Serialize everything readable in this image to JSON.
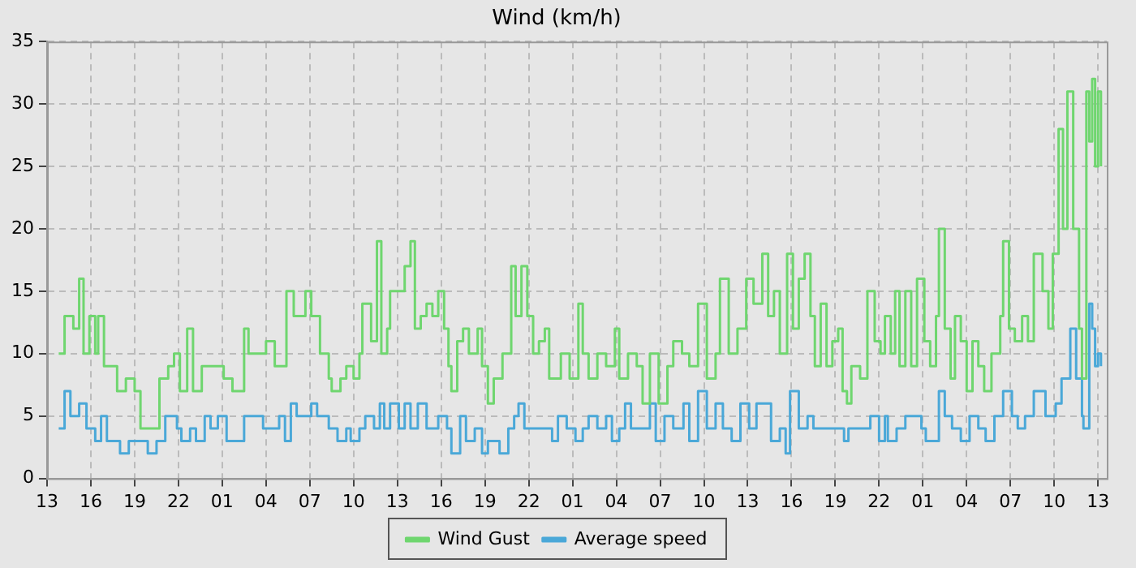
{
  "chart_data": {
    "type": "step",
    "title": "Wind (km/h)",
    "xlim": [
      "--01-01T13:00",
      "--01-04T13:36"
    ],
    "ylim": [
      0,
      35
    ],
    "xticks": [
      {
        "value": "--01-01T13:00",
        "label": "13"
      },
      {
        "value": "--01-01T16:00",
        "label": "16"
      },
      {
        "value": "--01-01T19:00",
        "label": "19"
      },
      {
        "value": "--01-01T22:00",
        "label": "22"
      },
      {
        "value": "--01-02T01:00",
        "label": "01"
      },
      {
        "value": "--01-02T04:00",
        "label": "04"
      },
      {
        "value": "--01-02T07:00",
        "label": "07"
      },
      {
        "value": "--01-02T10:00",
        "label": "10"
      },
      {
        "value": "--01-02T13:00",
        "label": "13"
      },
      {
        "value": "--01-02T16:00",
        "label": "16"
      },
      {
        "value": "--01-02T19:00",
        "label": "19"
      },
      {
        "value": "--01-02T22:00",
        "label": "22"
      },
      {
        "value": "--01-03T01:00",
        "label": "01"
      },
      {
        "value": "--01-03T04:00",
        "label": "04"
      },
      {
        "value": "--01-03T07:00",
        "label": "07"
      },
      {
        "value": "--01-03T10:00",
        "label": "10"
      },
      {
        "value": "--01-03T13:00",
        "label": "13"
      },
      {
        "value": "--01-03T16:00",
        "label": "16"
      },
      {
        "value": "--01-03T19:00",
        "label": "19"
      },
      {
        "value": "--01-03T22:00",
        "label": "22"
      },
      {
        "value": "--01-04T01:00",
        "label": "01"
      },
      {
        "value": "--01-04T04:00",
        "label": "04"
      },
      {
        "value": "--01-04T07:00",
        "label": "07"
      },
      {
        "value": "--01-04T10:00",
        "label": "10"
      },
      {
        "value": "--01-04T13:00",
        "label": "13"
      }
    ],
    "yticks": [
      0,
      5,
      10,
      15,
      20,
      25,
      30,
      35
    ],
    "grid": true,
    "legend": "bottom",
    "marker": "none",
    "line_style": "solid",
    "series": [
      {
        "name": "Wind Gust",
        "color": "#6fd66f",
        "x": [
          "--01-01T13:48",
          "--01-01T14:12",
          "--01-01T14:48",
          "--01-01T15:12",
          "--01-01T15:30",
          "--01-01T15:54",
          "--01-01T16:18",
          "--01-01T16:30",
          "--01-01T16:54",
          "--01-01T17:30",
          "--01-01T17:48",
          "--01-01T18:24",
          "--01-01T19:00",
          "--01-01T19:24",
          "--01-01T20:06",
          "--01-01T20:42",
          "--01-01T21:18",
          "--01-01T21:42",
          "--01-01T22:06",
          "--01-01T22:36",
          "--01-01T23:00",
          "--01-01T23:36",
          "--01-02T00:24",
          "--01-02T01:06",
          "--01-02T01:42",
          "--01-02T02:30",
          "--01-02T02:48",
          "--01-02T03:36",
          "--01-02T04:00",
          "--01-02T04:36",
          "--01-02T05:06",
          "--01-02T05:24",
          "--01-02T05:54",
          "--01-02T06:42",
          "--01-02T07:06",
          "--01-02T07:24",
          "--01-02T07:42",
          "--01-02T08:18",
          "--01-02T08:30",
          "--01-02T09:06",
          "--01-02T09:30",
          "--01-02T10:00",
          "--01-02T10:24",
          "--01-02T10:36",
          "--01-02T11:12",
          "--01-02T11:36",
          "--01-02T11:54",
          "--01-02T12:18",
          "--01-02T12:30",
          "--01-02T13:06",
          "--01-02T13:30",
          "--01-02T13:54",
          "--01-02T14:12",
          "--01-02T14:36",
          "--01-02T15:00",
          "--01-02T15:24",
          "--01-02T15:48",
          "--01-02T16:12",
          "--01-02T16:30",
          "--01-02T16:42",
          "--01-02T17:06",
          "--01-02T17:30",
          "--01-02T17:54",
          "--01-02T18:30",
          "--01-02T18:48",
          "--01-02T19:12",
          "--01-02T19:36",
          "--01-02T20:12",
          "--01-02T20:48",
          "--01-02T21:06",
          "--01-02T21:30",
          "--01-02T21:54",
          "--01-02T22:18",
          "--01-02T22:42",
          "--01-02T23:06",
          "--01-02T23:24",
          "--01-03T00:12",
          "--01-03T00:48",
          "--01-03T01:24",
          "--01-03T01:42",
          "--01-03T02:06",
          "--01-03T02:42",
          "--01-03T03:18",
          "--01-03T03:54",
          "--01-03T04:12",
          "--01-03T04:48",
          "--01-03T05:24",
          "--01-03T05:48",
          "--01-03T06:18",
          "--01-03T06:54",
          "--01-03T07:30",
          "--01-03T07:54",
          "--01-03T08:30",
          "--01-03T09:00",
          "--01-03T09:36",
          "--01-03T10:12",
          "--01-03T10:48",
          "--01-03T11:06",
          "--01-03T11:42",
          "--01-03T12:18",
          "--01-03T12:54",
          "--01-03T13:24",
          "--01-03T14:00",
          "--01-03T14:24",
          "--01-03T14:48",
          "--01-03T15:12",
          "--01-03T15:42",
          "--01-03T16:06",
          "--01-03T16:30",
          "--01-03T16:54",
          "--01-03T17:18",
          "--01-03T17:36",
          "--01-03T18:00",
          "--01-03T18:24",
          "--01-03T18:48",
          "--01-03T19:12",
          "--01-03T19:30",
          "--01-03T19:48",
          "--01-03T20:06",
          "--01-03T20:42",
          "--01-03T21:12",
          "--01-03T21:42",
          "--01-03T22:06",
          "--01-03T22:24",
          "--01-03T22:48",
          "--01-03T23:06",
          "--01-03T23:24",
          "--01-03T23:48",
          "--01-04T00:12",
          "--01-04T00:36",
          "--01-04T01:06",
          "--01-04T01:30",
          "--01-04T01:54",
          "--01-04T02:06",
          "--01-04T02:30",
          "--01-04T02:54",
          "--01-04T03:12",
          "--01-04T03:36",
          "--01-04T04:00",
          "--01-04T04:24",
          "--01-04T04:48",
          "--01-04T05:12",
          "--01-04T05:42",
          "--01-04T06:18",
          "--01-04T06:30",
          "--01-04T06:54",
          "--01-04T07:18",
          "--01-04T07:48",
          "--01-04T08:12",
          "--01-04T08:36",
          "--01-04T09:12",
          "--01-04T09:36",
          "--01-04T09:54",
          "--01-04T10:18",
          "--01-04T10:36",
          "--01-04T10:54",
          "--01-04T11:18",
          "--01-04T11:42",
          "--01-04T11:54",
          "--01-04T12:12",
          "--01-04T12:24",
          "--01-04T12:36",
          "--01-04T12:48",
          "--01-04T13:00",
          "--01-04T13:12"
        ],
        "values": [
          10,
          13,
          12,
          16,
          10,
          13,
          10,
          13,
          9,
          9,
          7,
          8,
          7,
          4,
          4,
          8,
          9,
          10,
          7,
          12,
          7,
          9,
          9,
          8,
          7,
          12,
          10,
          10,
          11,
          9,
          9,
          15,
          13,
          15,
          13,
          13,
          10,
          8,
          7,
          8,
          9,
          8,
          10,
          14,
          11,
          19,
          10,
          12,
          15,
          15,
          17,
          19,
          12,
          13,
          14,
          13,
          15,
          12,
          9,
          7,
          11,
          12,
          10,
          12,
          9,
          6,
          8,
          10,
          17,
          13,
          17,
          13,
          10,
          11,
          12,
          8,
          10,
          8,
          14,
          10,
          8,
          10,
          9,
          12,
          8,
          10,
          9,
          6,
          10,
          6,
          9,
          11,
          10,
          9,
          14,
          8,
          10,
          16,
          10,
          12,
          16,
          14,
          18,
          13,
          15,
          10,
          18,
          12,
          16,
          18,
          13,
          9,
          14,
          9,
          11,
          12,
          7,
          6,
          9,
          8,
          15,
          11,
          10,
          13,
          10,
          15,
          9,
          15,
          9,
          16,
          11,
          9,
          13,
          20,
          12,
          8,
          13,
          11,
          7,
          11,
          9,
          7,
          10,
          13,
          19,
          12,
          11,
          13,
          11,
          18,
          15,
          12,
          18,
          28,
          20,
          31,
          20,
          12,
          8,
          31,
          27,
          32,
          25,
          31,
          25
        ]
      },
      {
        "name": "Average speed",
        "color": "#4aa8d8",
        "x": [
          "--01-01T13:48",
          "--01-01T14:12",
          "--01-01T14:36",
          "--01-01T15:12",
          "--01-01T15:42",
          "--01-01T16:18",
          "--01-01T16:42",
          "--01-01T17:06",
          "--01-01T17:36",
          "--01-01T18:00",
          "--01-01T18:36",
          "--01-01T19:24",
          "--01-01T19:54",
          "--01-01T20:30",
          "--01-01T21:06",
          "--01-01T21:54",
          "--01-01T22:12",
          "--01-01T22:48",
          "--01-01T23:12",
          "--01-01T23:48",
          "--01-02T00:12",
          "--01-02T00:42",
          "--01-02T01:18",
          "--01-02T02:06",
          "--01-02T02:30",
          "--01-02T03:12",
          "--01-02T03:48",
          "--01-02T04:24",
          "--01-02T04:54",
          "--01-02T05:18",
          "--01-02T05:42",
          "--01-02T06:06",
          "--01-02T06:42",
          "--01-02T07:06",
          "--01-02T07:24",
          "--01-02T07:30",
          "--01-02T08:18",
          "--01-02T08:54",
          "--01-02T09:30",
          "--01-02T09:48",
          "--01-02T10:24",
          "--01-02T10:48",
          "--01-02T11:24",
          "--01-02T11:48",
          "--01-02T12:06",
          "--01-02T12:30",
          "--01-02T13:06",
          "--01-02T13:30",
          "--01-02T13:54",
          "--01-02T14:24",
          "--01-02T15:00",
          "--01-02T15:48",
          "--01-02T16:24",
          "--01-02T16:42",
          "--01-02T17:18",
          "--01-02T17:42",
          "--01-02T18:18",
          "--01-02T18:48",
          "--01-02T19:12",
          "--01-02T20:00",
          "--01-02T20:36",
          "--01-02T21:00",
          "--01-02T21:18",
          "--01-02T21:42",
          "--01-02T22:18",
          "--01-02T23:06",
          "--01-02T23:36",
          "--01-03T00:00",
          "--01-03T00:36",
          "--01-03T01:12",
          "--01-03T01:42",
          "--01-03T02:06",
          "--01-03T02:42",
          "--01-03T03:18",
          "--01-03T03:42",
          "--01-03T04:12",
          "--01-03T04:36",
          "--01-03T05:00",
          "--01-03T06:18",
          "--01-03T06:42",
          "--01-03T07:18",
          "--01-03T07:54",
          "--01-03T08:36",
          "--01-03T09:00",
          "--01-03T09:36",
          "--01-03T10:12",
          "--01-03T10:48",
          "--01-03T11:18",
          "--01-03T11:54",
          "--01-03T12:30",
          "--01-03T13:06",
          "--01-03T13:36",
          "--01-03T14:12",
          "--01-03T14:36",
          "--01-03T15:12",
          "--01-03T15:36",
          "--01-03T15:54",
          "--01-03T16:30",
          "--01-03T17:06",
          "--01-03T17:30",
          "--01-03T19:24",
          "--01-03T19:36",
          "--01-03T19:54",
          "--01-03T20:54",
          "--01-03T21:24",
          "--01-03T22:00",
          "--01-03T22:24",
          "--01-03T22:36",
          "--01-03T23:12",
          "--01-03T23:48",
          "--01-04T00:24",
          "--01-04T00:54",
          "--01-04T01:12",
          "--01-04T02:06",
          "--01-04T02:30",
          "--01-04T03:00",
          "--01-04T03:36",
          "--01-04T04:12",
          "--01-04T04:48",
          "--01-04T05:18",
          "--01-04T05:54",
          "--01-04T06:30",
          "--01-04T07:06",
          "--01-04T07:30",
          "--01-04T08:00",
          "--01-04T08:36",
          "--01-04T09:24",
          "--01-04T10:06",
          "--01-04T10:30",
          "--01-04T11:06",
          "--01-04T11:30",
          "--01-04T11:54",
          "--01-04T12:00",
          "--01-04T12:24",
          "--01-04T12:36",
          "--01-04T12:48",
          "--01-04T13:00",
          "--01-04T13:12"
        ],
        "values": [
          4,
          7,
          5,
          6,
          4,
          3,
          5,
          3,
          3,
          2,
          3,
          3,
          2,
          3,
          5,
          4,
          3,
          4,
          3,
          5,
          4,
          5,
          3,
          3,
          5,
          5,
          4,
          4,
          5,
          3,
          6,
          5,
          5,
          6,
          6,
          5,
          4,
          3,
          4,
          3,
          4,
          5,
          4,
          6,
          4,
          6,
          4,
          6,
          4,
          6,
          4,
          5,
          4,
          2,
          5,
          3,
          4,
          2,
          3,
          2,
          4,
          5,
          6,
          4,
          4,
          4,
          3,
          5,
          4,
          3,
          4,
          5,
          4,
          5,
          3,
          4,
          6,
          4,
          6,
          3,
          5,
          4,
          6,
          3,
          7,
          4,
          6,
          4,
          3,
          6,
          4,
          6,
          6,
          3,
          4,
          2,
          7,
          4,
          5,
          4,
          4,
          3,
          4,
          4,
          5,
          3,
          5,
          3,
          4,
          5,
          5,
          4,
          3,
          7,
          5,
          4,
          3,
          5,
          4,
          3,
          5,
          7,
          5,
          4,
          5,
          7,
          5,
          6,
          8,
          12,
          8,
          5,
          4,
          14,
          12,
          9,
          10,
          9
        ]
      }
    ]
  }
}
